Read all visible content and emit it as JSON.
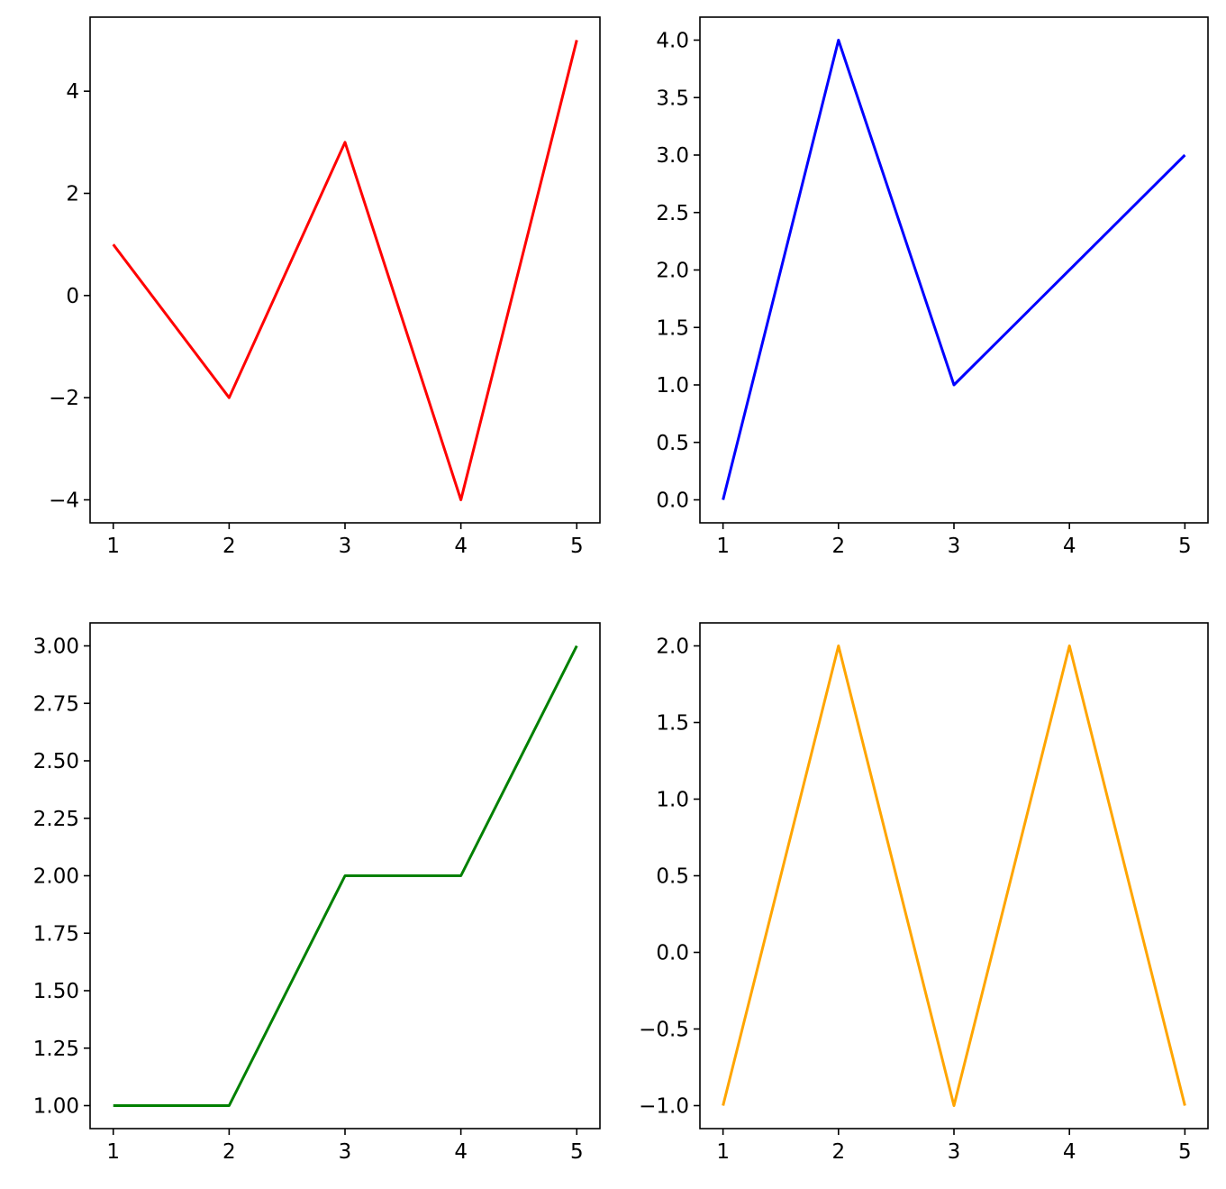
{
  "chart_data": [
    {
      "type": "line",
      "x": [
        1,
        2,
        3,
        4,
        5
      ],
      "series": [
        {
          "values": [
            1,
            -2,
            3,
            -4,
            5
          ],
          "color": "#ff0000"
        }
      ],
      "xlim": [
        0.8,
        5.2
      ],
      "ylim": [
        -4.45,
        5.45
      ],
      "xticks": [
        1,
        2,
        3,
        4,
        5
      ],
      "xtick_labels": [
        "1",
        "2",
        "3",
        "4",
        "5"
      ],
      "yticks": [
        -4,
        -2,
        0,
        2,
        4
      ],
      "ytick_labels": [
        "−4",
        "−2",
        "0",
        "2",
        "4"
      ],
      "title": "",
      "xlabel": "",
      "ylabel": "",
      "grid": false
    },
    {
      "type": "line",
      "x": [
        1,
        2,
        3,
        4,
        5
      ],
      "series": [
        {
          "values": [
            0,
            4,
            1,
            2,
            3
          ],
          "color": "#0000ff"
        }
      ],
      "xlim": [
        0.8,
        5.2
      ],
      "ylim": [
        -0.2,
        4.2
      ],
      "xticks": [
        1,
        2,
        3,
        4,
        5
      ],
      "xtick_labels": [
        "1",
        "2",
        "3",
        "4",
        "5"
      ],
      "yticks": [
        0,
        0.5,
        1,
        1.5,
        2,
        2.5,
        3,
        3.5,
        4
      ],
      "ytick_labels": [
        "0.0",
        "0.5",
        "1.0",
        "1.5",
        "2.0",
        "2.5",
        "3.0",
        "3.5",
        "4.0"
      ],
      "title": "",
      "xlabel": "",
      "ylabel": "",
      "grid": false
    },
    {
      "type": "line",
      "x": [
        1,
        2,
        3,
        4,
        5
      ],
      "series": [
        {
          "values": [
            1,
            1,
            2,
            2,
            3
          ],
          "color": "#008000"
        }
      ],
      "xlim": [
        0.8,
        5.2
      ],
      "ylim": [
        0.9,
        3.1
      ],
      "xticks": [
        1,
        2,
        3,
        4,
        5
      ],
      "xtick_labels": [
        "1",
        "2",
        "3",
        "4",
        "5"
      ],
      "yticks": [
        1,
        1.25,
        1.5,
        1.75,
        2,
        2.25,
        2.5,
        2.75,
        3
      ],
      "ytick_labels": [
        "1.00",
        "1.25",
        "1.50",
        "1.75",
        "2.00",
        "2.25",
        "2.50",
        "2.75",
        "3.00"
      ],
      "title": "",
      "xlabel": "",
      "ylabel": "",
      "grid": false
    },
    {
      "type": "line",
      "x": [
        1,
        2,
        3,
        4,
        5
      ],
      "series": [
        {
          "values": [
            -1,
            2,
            -1,
            2,
            -1
          ],
          "color": "#ffa500"
        }
      ],
      "xlim": [
        0.8,
        5.2
      ],
      "ylim": [
        -1.15,
        2.15
      ],
      "xticks": [
        1,
        2,
        3,
        4,
        5
      ],
      "xtick_labels": [
        "1",
        "2",
        "3",
        "4",
        "5"
      ],
      "yticks": [
        -1,
        -0.5,
        0,
        0.5,
        1,
        1.5,
        2
      ],
      "ytick_labels": [
        "−1.0",
        "−0.5",
        "0.0",
        "0.5",
        "1.0",
        "1.5",
        "2.0"
      ],
      "title": "",
      "xlabel": "",
      "ylabel": "",
      "grid": false
    }
  ]
}
